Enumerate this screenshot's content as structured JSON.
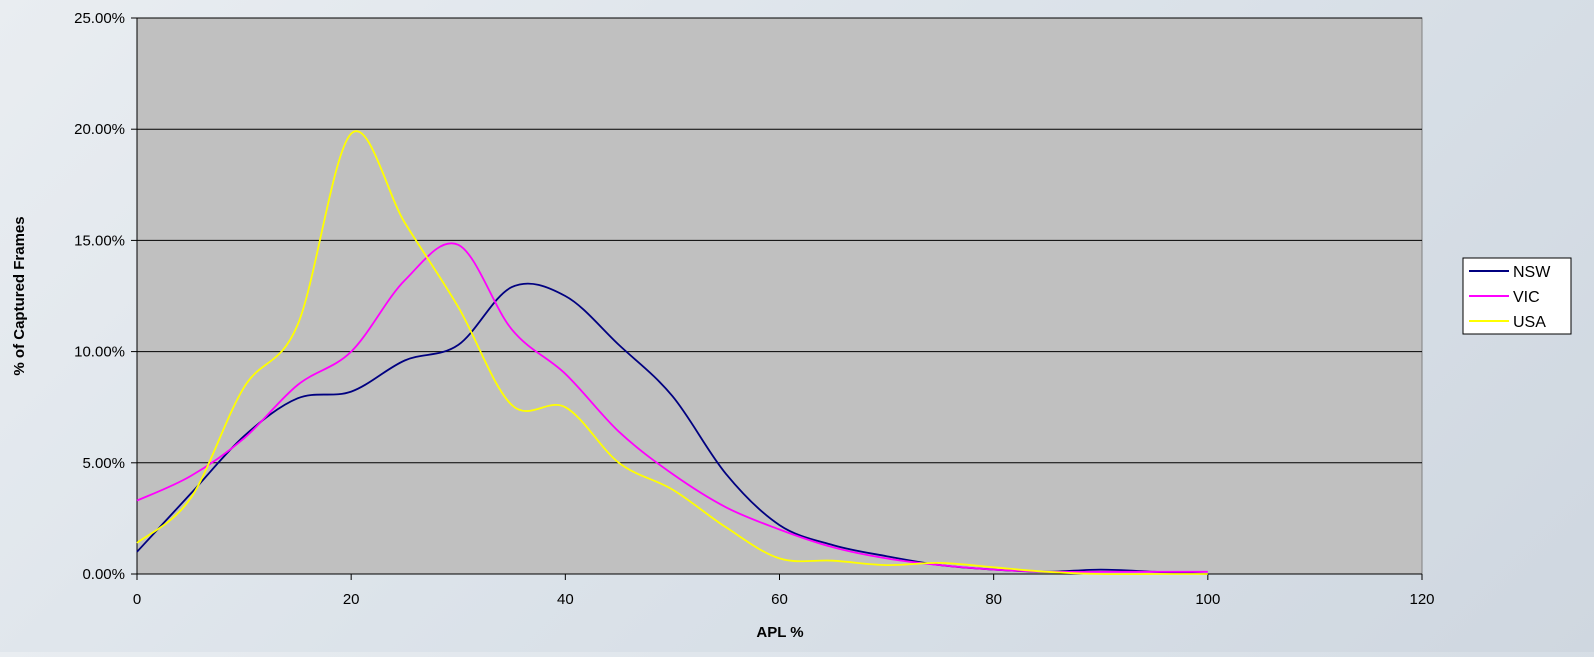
{
  "chart_data": {
    "type": "line",
    "title": "",
    "xlabel": "APL %",
    "ylabel": "% of Captured Frames",
    "xlim": [
      0,
      120
    ],
    "ylim": [
      0,
      0.25
    ],
    "x_ticks": [
      0,
      20,
      40,
      60,
      80,
      100,
      120
    ],
    "y_ticks": [
      0,
      0.05,
      0.1,
      0.15,
      0.2,
      0.25
    ],
    "x_tick_labels": [
      "0",
      "20",
      "40",
      "60",
      "80",
      "100",
      "120"
    ],
    "y_tick_labels": [
      "0.00%",
      "5.00%",
      "10.00%",
      "15.00%",
      "20.00%",
      "25.00%"
    ],
    "grid": "horizontal",
    "plot_background": "#c0c0c0",
    "legend_position": "right",
    "series": [
      {
        "name": "NSW",
        "color": "#000080",
        "x": [
          0,
          5,
          10,
          15,
          20,
          25,
          30,
          35,
          40,
          45,
          50,
          55,
          60,
          65,
          70,
          75,
          80,
          85,
          90,
          95,
          100
        ],
        "y": [
          0.01,
          0.036,
          0.062,
          0.079,
          0.082,
          0.096,
          0.103,
          0.129,
          0.125,
          0.103,
          0.08,
          0.045,
          0.022,
          0.013,
          0.008,
          0.004,
          0.002,
          0.001,
          0.002,
          0.001,
          0.0
        ]
      },
      {
        "name": "VIC",
        "color": "#ff00ff",
        "x": [
          0,
          5,
          10,
          15,
          20,
          25,
          30,
          35,
          40,
          45,
          50,
          55,
          60,
          65,
          70,
          75,
          80,
          85,
          90,
          95,
          100
        ],
        "y": [
          0.033,
          0.044,
          0.061,
          0.085,
          0.1,
          0.132,
          0.148,
          0.11,
          0.09,
          0.064,
          0.045,
          0.03,
          0.02,
          0.012,
          0.007,
          0.004,
          0.002,
          0.001,
          0.001,
          0.001,
          0.001
        ]
      },
      {
        "name": "USA",
        "color": "#ffff00",
        "x": [
          0,
          5,
          10,
          15,
          20,
          25,
          30,
          35,
          40,
          45,
          50,
          55,
          60,
          65,
          70,
          75,
          80,
          85,
          90,
          95,
          100
        ],
        "y": [
          0.014,
          0.034,
          0.084,
          0.112,
          0.198,
          0.158,
          0.12,
          0.076,
          0.075,
          0.05,
          0.038,
          0.021,
          0.007,
          0.006,
          0.004,
          0.005,
          0.003,
          0.001,
          0.0,
          0.0,
          0.0
        ]
      }
    ]
  }
}
